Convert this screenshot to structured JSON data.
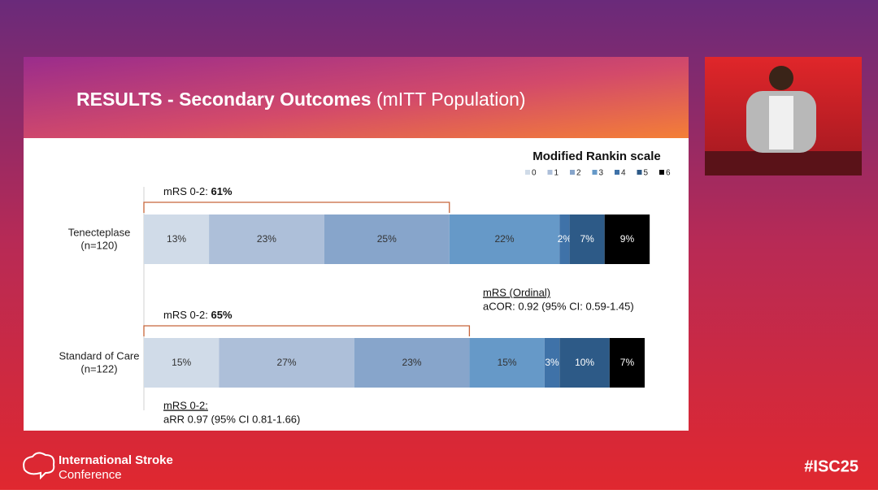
{
  "slide": {
    "title": "RESULTS - Secondary Outcomes",
    "title_suffix": "(mITT Population)"
  },
  "chart_data": {
    "type": "stacked_bar",
    "legend_title": "Modified Rankin scale",
    "categories": [
      "Tenecteplase",
      "Standard of Care"
    ],
    "category_sublabels": [
      "(n=120)",
      "(n=122)"
    ],
    "series": [
      {
        "name": "0",
        "color": "#d0dbe8",
        "values": [
          13,
          15
        ],
        "value_labels": [
          "13%",
          "15%"
        ]
      },
      {
        "name": "1",
        "color": "#adbfd9",
        "values": [
          23,
          27
        ],
        "value_labels": [
          "23%",
          "27%"
        ]
      },
      {
        "name": "2",
        "color": "#87a5cb",
        "values": [
          25,
          23
        ],
        "value_labels": [
          "25%",
          "23%"
        ]
      },
      {
        "name": "3",
        "color": "#6699c8",
        "values": [
          22,
          15
        ],
        "value_labels": [
          "22%",
          "15%"
        ]
      },
      {
        "name": "4",
        "color": "#3f72a8",
        "values": [
          2,
          3
        ],
        "value_labels": [
          "2%",
          "3%"
        ]
      },
      {
        "name": "5",
        "color": "#2d5a87",
        "values": [
          7,
          10
        ],
        "value_labels": [
          "7%",
          "10%"
        ]
      },
      {
        "name": "6",
        "color": "#000000",
        "values": [
          9,
          7
        ],
        "value_labels": [
          "9%",
          "7%"
        ]
      }
    ],
    "brackets": [
      {
        "text": "mRS 0-2:",
        "bold": "61%"
      },
      {
        "text": "mRS 0-2:",
        "bold": "65%"
      }
    ],
    "notes": [
      {
        "heading": "mRS (Ordinal)",
        "text": "aCOR: 0.92 (95% CI: 0.59-1.45)"
      },
      {
        "heading": "mRS 0-2:",
        "text": "aRR 0.97 (95% CI 0.81-1.66)"
      }
    ]
  },
  "footer": {
    "org_line1": "International Stroke",
    "org_line2": "Conference",
    "hashtag": "#ISC25"
  }
}
